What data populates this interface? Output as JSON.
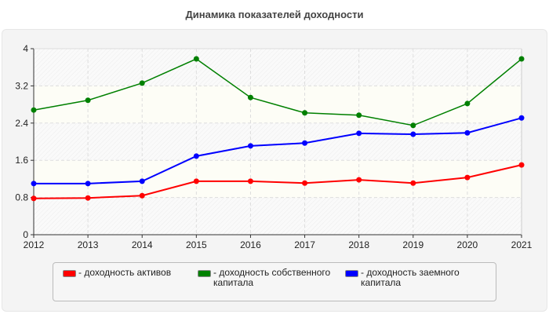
{
  "chart_data": {
    "type": "line",
    "title": "Динамика показателей доходности",
    "x": [
      "2012",
      "2013",
      "2014",
      "2015",
      "2016",
      "2017",
      "2018",
      "2019",
      "2020",
      "2021"
    ],
    "ylim": [
      0,
      4
    ],
    "yticks": [
      "0",
      "0.8",
      "1.6",
      "2.4",
      "3.2",
      "4"
    ],
    "grid": true,
    "legend_position": "bottom",
    "series": [
      {
        "name": "- доходность активов",
        "color": "#ff0000",
        "values": [
          0.78,
          0.79,
          0.84,
          1.15,
          1.15,
          1.11,
          1.18,
          1.11,
          1.23,
          1.5
        ]
      },
      {
        "name": "- доходность собственного капитала",
        "color": "#008000",
        "values": [
          2.68,
          2.89,
          3.26,
          3.78,
          2.95,
          2.62,
          2.57,
          2.35,
          2.82,
          3.78
        ]
      },
      {
        "name": "- доходность заемного капитала",
        "color": "#0000ff",
        "values": [
          1.1,
          1.1,
          1.15,
          1.69,
          1.91,
          1.97,
          2.18,
          2.16,
          2.19,
          2.51
        ]
      }
    ]
  }
}
